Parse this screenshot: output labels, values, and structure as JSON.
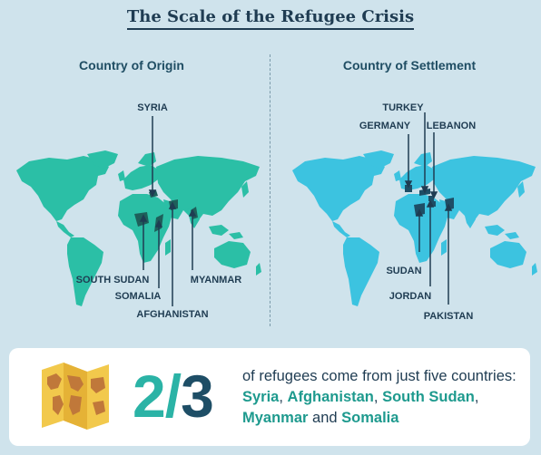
{
  "title": "The Scale of the Refugee Crisis",
  "origin": {
    "label": "Country of Origin",
    "color": "#2bbfa6",
    "countries": [
      "SYRIA",
      "SOUTH SUDAN",
      "SOMALIA",
      "MYANMAR",
      "AFGHANISTAN"
    ]
  },
  "settlement": {
    "label": "Country of Settlement",
    "color": "#3cc3e0",
    "countries": [
      "TURKEY",
      "GERMANY",
      "LEBANON",
      "SUDAN",
      "JORDAN",
      "PAKISTAN"
    ]
  },
  "stat": {
    "numerator": "2",
    "slash": "/",
    "denominator": "3",
    "text_1": "of refugees come from just five countries: ",
    "c1": "Syria",
    "sep1": ", ",
    "c2": "Afghanistan",
    "sep2": ", ",
    "c3": "South Sudan",
    "sep3": ", ",
    "c4": "Myanmar",
    "and": " and ",
    "c5": "Somalia"
  },
  "icons": {
    "map": "folded-map-icon"
  }
}
